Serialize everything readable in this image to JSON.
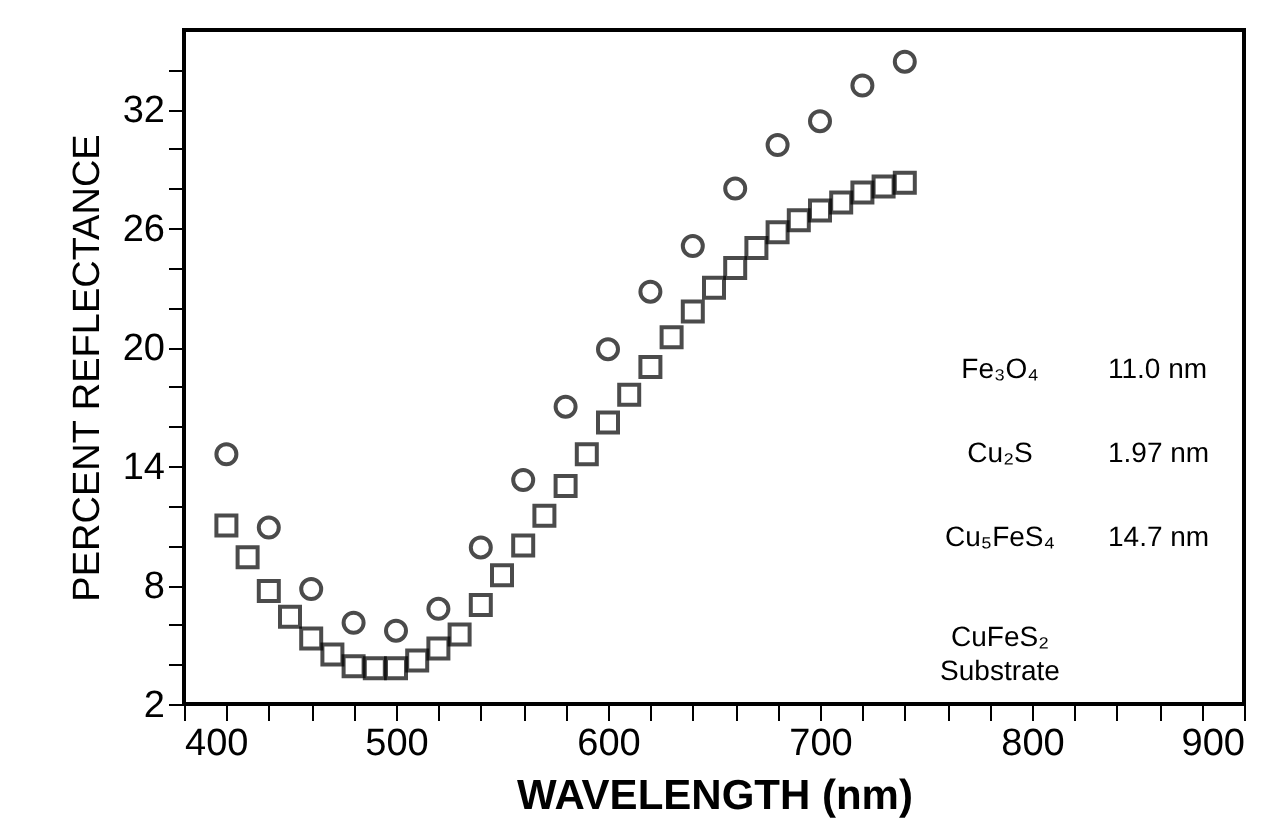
{
  "chart_data": {
    "type": "scatter",
    "xlabel": "WAVELENGTH (nm)",
    "ylabel": "PERCENT REFLECTANCE",
    "xlim": [
      400,
      900
    ],
    "ylim": [
      2,
      36
    ],
    "xticks": [
      400,
      {
        "value": 420,
        "label": null
      },
      {
        "value": 440,
        "label": null
      },
      {
        "value": 460,
        "label": null
      },
      {
        "value": 480,
        "label": null
      },
      500,
      {
        "value": 520,
        "label": null
      },
      {
        "value": 540,
        "label": null
      },
      {
        "value": 560,
        "label": null
      },
      {
        "value": 580,
        "label": null
      },
      600,
      {
        "value": 620,
        "label": null
      },
      {
        "value": 640,
        "label": null
      },
      {
        "value": 660,
        "label": null
      },
      {
        "value": 680,
        "label": null
      },
      700,
      {
        "value": 720,
        "label": null
      },
      {
        "value": 740,
        "label": null
      },
      {
        "value": 760,
        "label": null
      },
      {
        "value": 780,
        "label": null
      },
      800,
      {
        "value": 820,
        "label": null
      },
      {
        "value": 840,
        "label": null
      },
      {
        "value": 860,
        "label": null
      },
      {
        "value": 880,
        "label": null
      },
      900
    ],
    "yticks": [
      2,
      {
        "value": 4,
        "label": null
      },
      {
        "value": 6,
        "label": null
      },
      8,
      {
        "value": 10,
        "label": null
      },
      {
        "value": 12,
        "label": null
      },
      14,
      {
        "value": 16,
        "label": null
      },
      {
        "value": 18,
        "label": null
      },
      20,
      {
        "value": 22,
        "label": null
      },
      {
        "value": 24,
        "label": null
      },
      26,
      {
        "value": 28,
        "label": null
      },
      {
        "value": 30,
        "label": null
      },
      32,
      {
        "value": 34,
        "label": null
      }
    ],
    "grid": false,
    "series": [
      {
        "color": "#000000",
        "marker": "circle",
        "x": [
          420,
          440,
          460,
          480,
          500,
          520,
          540,
          560,
          580,
          600,
          620,
          640,
          660,
          680,
          700,
          720,
          740
        ],
        "values": [
          14.6,
          10.9,
          7.8,
          6.1,
          5.7,
          6.8,
          9.9,
          13.3,
          17.0,
          19.9,
          22.8,
          25.1,
          28.0,
          30.2,
          31.4,
          33.2,
          34.4
        ]
      },
      {
        "color": "#000000",
        "marker": "square",
        "x": [
          420,
          430,
          440,
          450,
          460,
          470,
          480,
          490,
          500,
          510,
          520,
          530,
          540,
          550,
          560,
          570,
          580,
          590,
          600,
          610,
          620,
          630,
          640,
          650,
          660,
          670,
          680,
          690,
          700,
          710,
          720,
          730,
          740
        ],
        "values": [
          11.0,
          9.4,
          7.7,
          6.4,
          5.3,
          4.5,
          3.9,
          3.8,
          3.8,
          4.2,
          4.8,
          5.5,
          7.0,
          8.5,
          10.0,
          11.5,
          13.0,
          14.6,
          16.2,
          17.6,
          19.0,
          20.5,
          21.8,
          23.0,
          24.0,
          25.0,
          25.8,
          26.4,
          26.9,
          27.3,
          27.8,
          28.1,
          28.3
        ]
      }
    ],
    "annotations": [
      "Fe₃O₄",
      "11.0 nm",
      "Cu₂S",
      "1.97 nm",
      "Cu₅FeS₄",
      "14.7 nm",
      "CuFeS₂\nSubstrate"
    ]
  }
}
